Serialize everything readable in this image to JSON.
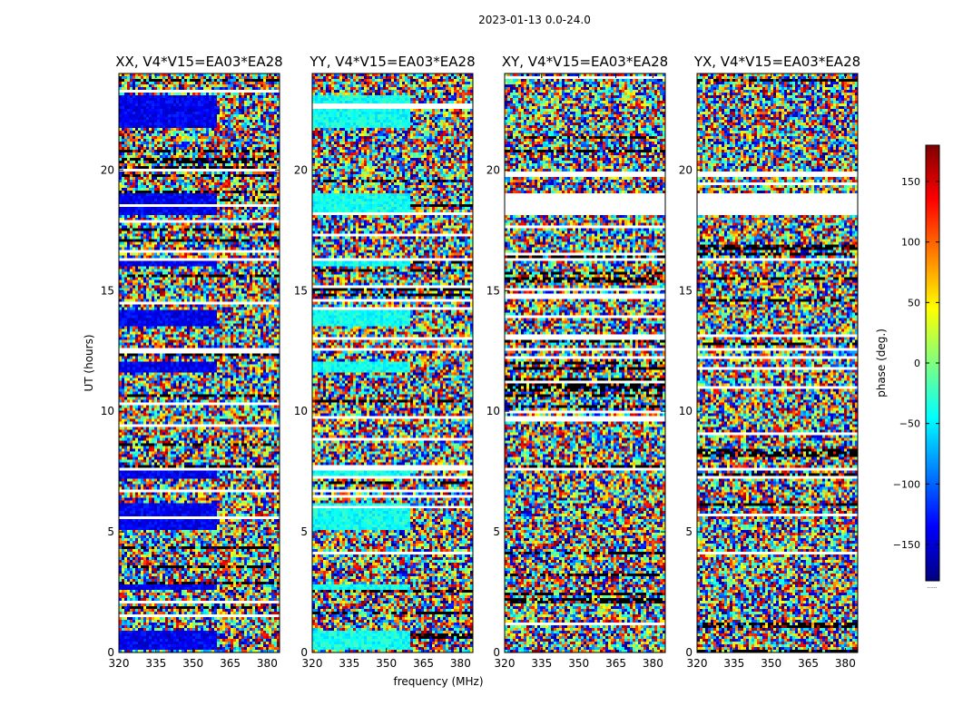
{
  "figure": {
    "suptitle": "2023-01-13 0.0-24.0",
    "xlabel": "frequency (MHz)",
    "ylabel": "UT (hours)"
  },
  "colorbar": {
    "label": "phase (deg.)",
    "range": [
      -180,
      180
    ],
    "ticks": [
      "150",
      "100",
      "50",
      "0",
      "−50",
      "−100",
      "−150"
    ],
    "tick_values": [
      150,
      100,
      50,
      0,
      -50,
      -100,
      -150
    ],
    "footer": "......",
    "stops": [
      "#00007f",
      "#0000ff",
      "#007fff",
      "#00ffff",
      "#7fff7f",
      "#ffff00",
      "#ff7f00",
      "#ff0000",
      "#7f0000"
    ]
  },
  "chart_data": {
    "type": "heatmap",
    "colormap": "jet",
    "value": "phase (deg.)",
    "xlim": [
      320,
      385
    ],
    "ylim": [
      0,
      24
    ],
    "x_ticks": [
      "320",
      "335",
      "350",
      "365",
      "380"
    ],
    "x_tick_values": [
      320,
      335,
      350,
      365,
      380
    ],
    "y_ticks": [
      "0",
      "5",
      "10",
      "15",
      "20"
    ],
    "y_tick_values": [
      0,
      5,
      10,
      15,
      20
    ],
    "panels": [
      {
        "title": "XX, V4*V15=EA03*EA28",
        "coherent_phase": -140
      },
      {
        "title": "YY, V4*V15=EA03*EA28",
        "coherent_phase": -40
      },
      {
        "title": "XY, V4*V15=EA03*EA28",
        "coherent_phase": null
      },
      {
        "title": "YX, V4*V15=EA03*EA28",
        "coherent_phase": null
      }
    ],
    "flagged_ut_ranges": [
      [
        18.15,
        19.0
      ],
      [
        7.55,
        7.7
      ],
      [
        12.5,
        12.6
      ],
      [
        16.2,
        16.3
      ]
    ],
    "coherent_ut_ranges": [
      [
        0.1,
        0.9
      ],
      [
        2.6,
        2.8
      ],
      [
        5.1,
        6.2
      ],
      [
        7.2,
        7.5
      ],
      [
        11.6,
        12.1
      ],
      [
        13.5,
        14.2
      ],
      [
        16.0,
        16.3
      ],
      [
        18.15,
        19.05
      ],
      [
        21.8,
        23.1
      ]
    ]
  }
}
